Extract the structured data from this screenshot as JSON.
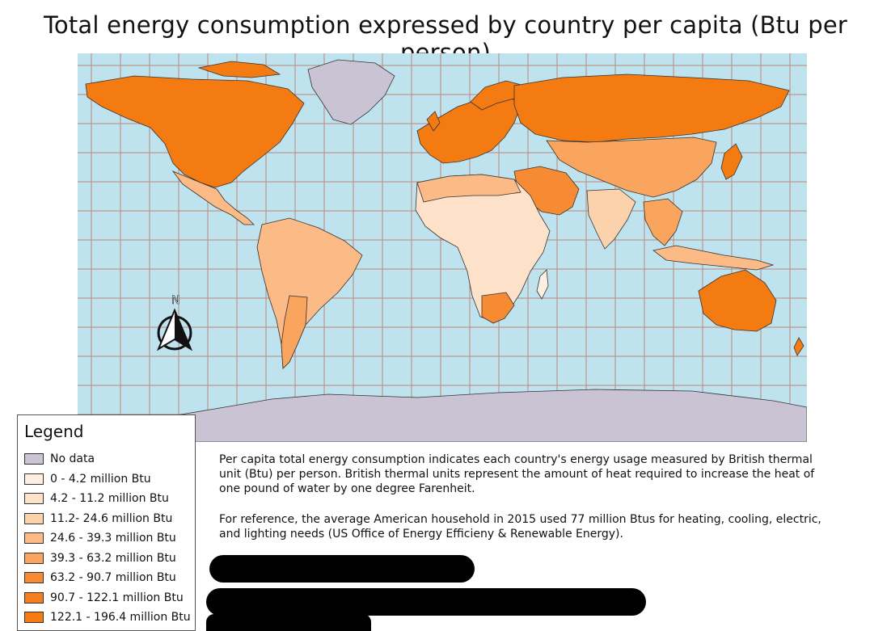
{
  "title": "Total energy consumption expressed by country per capita (Btu per person)",
  "north_arrow": {
    "label": "N",
    "icon": "north-arrow-icon"
  },
  "colors": {
    "ocean": "#bfe3ee",
    "graticule": "#b8877a",
    "no_data": "#c9c3d3",
    "class_1": "#fdf0e2",
    "class_2": "#fde2c9",
    "class_3": "#fcd2ad",
    "class_4": "#fbba86",
    "class_5": "#f9a55d",
    "class_6": "#f78b34",
    "class_7": "#f57e1f",
    "class_8": "#f47a12"
  },
  "legend": {
    "title": "Legend",
    "items": [
      {
        "label": "No data",
        "color": "#c9c3d3"
      },
      {
        "label": "0 - 4.2 million Btu",
        "color": "#fdf0e2"
      },
      {
        "label": "4.2 - 11.2 million Btu",
        "color": "#fde2c9"
      },
      {
        "label": "11.2- 24.6 million Btu",
        "color": "#fcd2ad"
      },
      {
        "label": "24.6 - 39.3 million Btu",
        "color": "#fbba86"
      },
      {
        "label": "39.3 - 63.2 million Btu",
        "color": "#f9a55d"
      },
      {
        "label": "63.2 - 90.7 million Btu",
        "color": "#f78b34"
      },
      {
        "label": "90.7 - 122.1 million Btu",
        "color": "#f57e1f"
      },
      {
        "label": "122.1 - 196.4 million Btu",
        "color": "#f47a12"
      }
    ]
  },
  "description": {
    "paragraph_1": "Per capita total energy consumption indicates each country's energy usage measured by British thermal unit (Btu) per person. British thermal units represent the amount of heat required to increase the heat of one pound of water by one degree Farenheit.",
    "paragraph_2": "For reference, the average American household in 2015 used 77 million Btus for heating, cooling, electric, and lighting needs (US Office of Energy Efficieny & Renewable Energy)."
  }
}
